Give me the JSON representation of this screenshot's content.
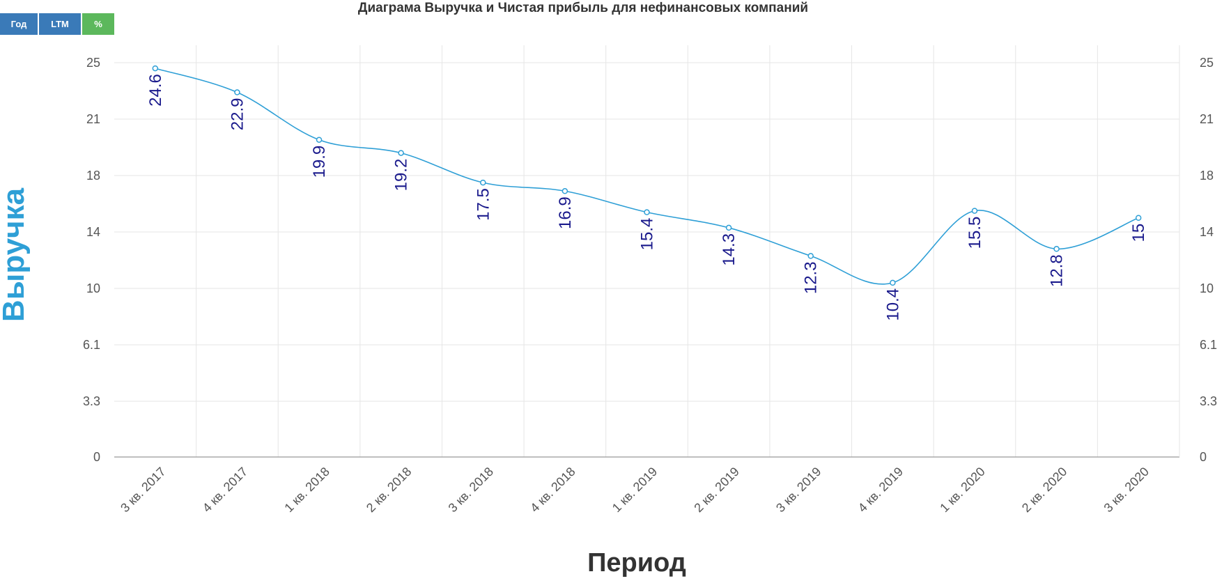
{
  "toolbar": {
    "year": "Год",
    "ltm": "LTM",
    "pct": "%"
  },
  "colors": {
    "line": "#2e9fd6",
    "labels": "#1a1a8c",
    "grid": "#e6e6e6",
    "axis": "#999999",
    "button_blue": "#3a7ab8",
    "button_green": "#5cb85c"
  },
  "chart_data": {
    "type": "line",
    "title": "Диаграма Выручка и Чистая прибыль для нефинансовых компаний",
    "xlabel": "Период",
    "ylabel": "Выручка",
    "categories": [
      "3 кв. 2017",
      "4 кв. 2017",
      "1 кв. 2018",
      "2 кв. 2018",
      "3 кв. 2018",
      "4 кв. 2018",
      "1 кв. 2019",
      "2 кв. 2019",
      "3 кв. 2019",
      "4 кв. 2019",
      "1 кв. 2020",
      "2 кв. 2020",
      "3 кв. 2020"
    ],
    "series": [
      {
        "values": [
          24.6,
          22.9,
          19.9,
          19.2,
          17.5,
          16.9,
          15.4,
          14.3,
          12.3,
          10.4,
          15.5,
          12.8,
          15
        ],
        "labels": [
          "24.6",
          "22.9",
          "19.9",
          "19.2",
          "17.5",
          "16.9",
          "15.4",
          "14.3",
          "12.3",
          "10.4",
          "15.5",
          "12.8",
          "15"
        ]
      }
    ],
    "yticks": [
      "0",
      "3.3",
      "6.1",
      "10",
      "14",
      "18",
      "21",
      "25"
    ],
    "grid": true,
    "legend": "none"
  }
}
